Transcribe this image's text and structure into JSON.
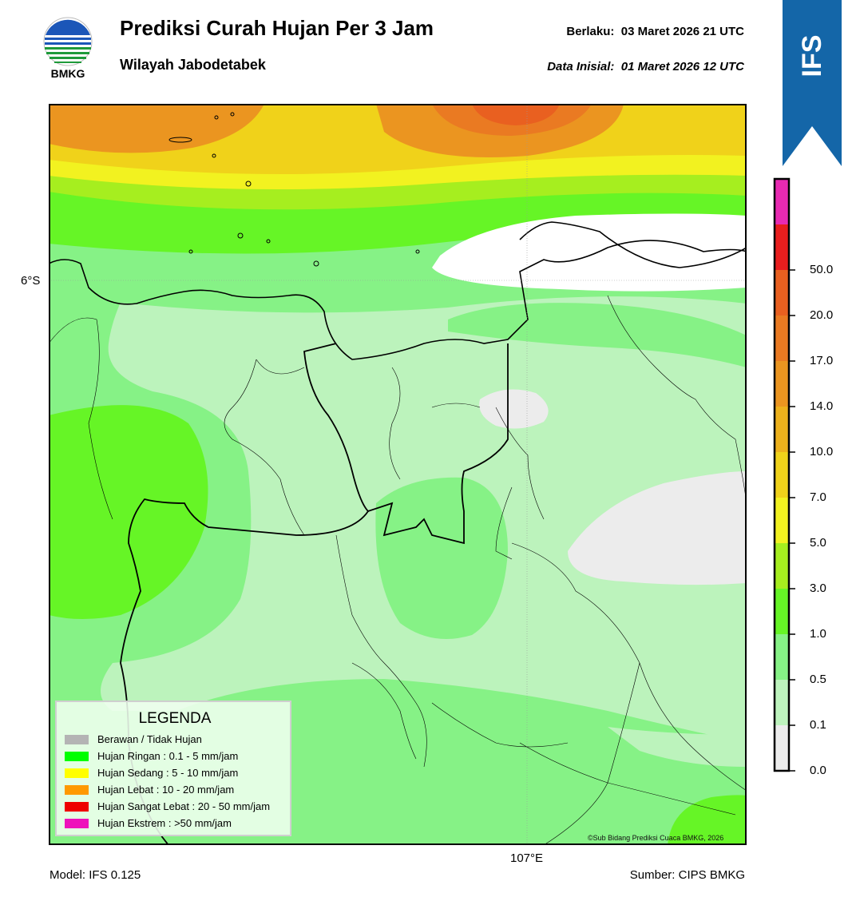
{
  "header": {
    "title": "Prediksi Curah Hujan Per 3 Jam",
    "subtitle": "Wilayah Jabodetabek",
    "valid_label": "Berlaku:",
    "valid_value": "03 Maret 2026 21 UTC",
    "initial_label": "Data Inisial:",
    "initial_value": "01 Maret 2026 12 UTC",
    "logo_text": "BMKG",
    "ribbon_text": "IFS"
  },
  "map": {
    "lat_label": "6°S",
    "lon_label": "107°E",
    "copyright": "©Sub Bidang Prediksi Cuaca BMKG, 2026"
  },
  "legend": {
    "title": "LEGENDA",
    "items": [
      {
        "label": "Berawan / Tidak Hujan",
        "color": "#b4b4b4"
      },
      {
        "label": "Hujan Ringan : 0.1 - 5 mm/jam",
        "color": "#00ff00"
      },
      {
        "label": "Hujan Sedang : 5 - 10 mm/jam",
        "color": "#ffff00"
      },
      {
        "label": "Hujan Lebat : 10 - 20 mm/jam",
        "color": "#ff9900"
      },
      {
        "label": "Hujan Sangat Lebat : 20 - 50 mm/jam",
        "color": "#ee0000"
      },
      {
        "label": "Hujan Ekstrem : >50 mm/jam",
        "color": "#ee11bb"
      }
    ]
  },
  "colorbar": {
    "ticks": [
      "0.0",
      "0.1",
      "0.5",
      "1.0",
      "3.0",
      "5.0",
      "7.0",
      "10.0",
      "14.0",
      "17.0",
      "20.0",
      "50.0"
    ],
    "colors": [
      "#ececec",
      "#bdf3bd",
      "#86f286",
      "#66f526",
      "#a6ee1f",
      "#f2f220",
      "#f0d21a",
      "#edb11c",
      "#eb9520",
      "#ea7a22",
      "#e96020",
      "#e81e1e",
      "#e82ab2"
    ]
  },
  "footer": {
    "model": "Model: IFS 0.125",
    "source": "Sumber: CIPS BMKG"
  }
}
